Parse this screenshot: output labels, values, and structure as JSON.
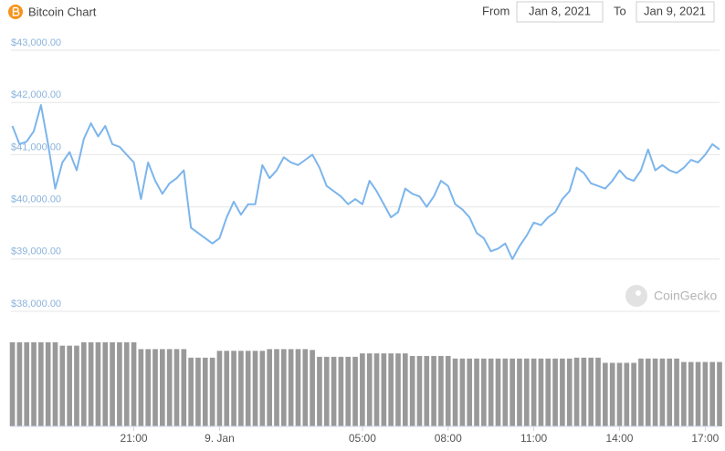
{
  "header": {
    "title": "Bitcoin Chart",
    "from_label": "From",
    "from_date": "Jan 8, 2021",
    "to_label": "To",
    "to_date": "Jan 9, 2021"
  },
  "watermark": "CoinGecko",
  "chart_data": [
    {
      "type": "line",
      "color": "#7cb5ec",
      "grid": true,
      "xlim": [
        16.7,
        41.5
      ],
      "xticks": [
        {
          "value": 21,
          "label": "21:00"
        },
        {
          "value": 24,
          "label": "9. Jan"
        },
        {
          "value": 29,
          "label": "05:00"
        },
        {
          "value": 32,
          "label": "08:00"
        },
        {
          "value": 35,
          "label": "11:00"
        },
        {
          "value": 38,
          "label": "14:00"
        },
        {
          "value": 41,
          "label": "17:00"
        }
      ],
      "ylim": [
        38000,
        43000
      ],
      "yticks": [
        {
          "value": 38000,
          "label": "$38,000.00"
        },
        {
          "value": 39000,
          "label": "$39,000.00"
        },
        {
          "value": 40000,
          "label": "$40,000.00"
        },
        {
          "value": 41000,
          "label": "$41,000.00"
        },
        {
          "value": 42000,
          "label": "$42,000.00"
        },
        {
          "value": 43000,
          "label": "$43,000.00"
        }
      ],
      "x": [
        16.75,
        17,
        17.25,
        17.5,
        17.75,
        18,
        18.25,
        18.5,
        18.75,
        19,
        19.25,
        19.5,
        19.75,
        20,
        20.25,
        20.5,
        20.75,
        21,
        21.25,
        21.5,
        21.75,
        22,
        22.25,
        22.5,
        22.75,
        23,
        23.25,
        23.5,
        23.75,
        24,
        24.25,
        24.5,
        24.75,
        25,
        25.25,
        25.5,
        25.75,
        26,
        26.25,
        26.5,
        26.75,
        27,
        27.25,
        27.5,
        27.75,
        28,
        28.25,
        28.5,
        28.75,
        29,
        29.25,
        29.5,
        29.75,
        30,
        30.25,
        30.5,
        30.75,
        31,
        31.25,
        31.5,
        31.75,
        32,
        32.25,
        32.5,
        32.75,
        33,
        33.25,
        33.5,
        33.75,
        34,
        34.25,
        34.5,
        34.75,
        35,
        35.25,
        35.5,
        35.75,
        36,
        36.25,
        36.5,
        36.75,
        37,
        37.25,
        37.5,
        37.75,
        38,
        38.25,
        38.5,
        38.75,
        39,
        39.25,
        39.5,
        39.75,
        40,
        40.25,
        40.5,
        40.75,
        41,
        41.25,
        41.5
      ],
      "values": [
        41550,
        41200,
        41250,
        41450,
        41950,
        41200,
        40350,
        40850,
        41050,
        40700,
        41300,
        41600,
        41350,
        41550,
        41200,
        41150,
        41000,
        40850,
        40150,
        40850,
        40500,
        40250,
        40450,
        40550,
        40700,
        39600,
        39500,
        39400,
        39300,
        39400,
        39800,
        40100,
        39850,
        40050,
        40050,
        40800,
        40550,
        40700,
        40950,
        40850,
        40800,
        40900,
        41000,
        40750,
        40400,
        40300,
        40200,
        40050,
        40150,
        40050,
        40500,
        40300,
        40050,
        39800,
        39900,
        40350,
        40250,
        40200,
        40000,
        40200,
        40500,
        40400,
        40050,
        39950,
        39800,
        39500,
        39400,
        39150,
        39200,
        39300,
        39000,
        39250,
        39450,
        39700,
        39650,
        39800,
        39900,
        40150,
        40300,
        40750,
        40650,
        40450,
        40400,
        40350,
        40500,
        40700,
        40550,
        40500,
        40700,
        41100,
        40700,
        40800,
        40700,
        40650,
        40750,
        40900,
        40850,
        41000,
        41200,
        41100
      ]
    },
    {
      "type": "bar",
      "color": "#999999",
      "ylim": [
        0,
        100
      ],
      "values": [
        98,
        98,
        98,
        98,
        98,
        98,
        98,
        94,
        94,
        94,
        98,
        98,
        98,
        98,
        98,
        98,
        98,
        98,
        90,
        90,
        90,
        90,
        90,
        90,
        90,
        80,
        80,
        80,
        80,
        88,
        88,
        88,
        88,
        88,
        88,
        88,
        90,
        90,
        90,
        90,
        90,
        90,
        89,
        81,
        81,
        81,
        81,
        81,
        81,
        85,
        85,
        85,
        85,
        85,
        85,
        85,
        82,
        82,
        82,
        82,
        82,
        82,
        79,
        79,
        79,
        79,
        79,
        79,
        79,
        79,
        79,
        79,
        79,
        79,
        79,
        79,
        79,
        79,
        79,
        80,
        80,
        80,
        80,
        74,
        74,
        74,
        74,
        74,
        79,
        79,
        79,
        79,
        79,
        79,
        75,
        75,
        75,
        75,
        75,
        75
      ]
    }
  ]
}
